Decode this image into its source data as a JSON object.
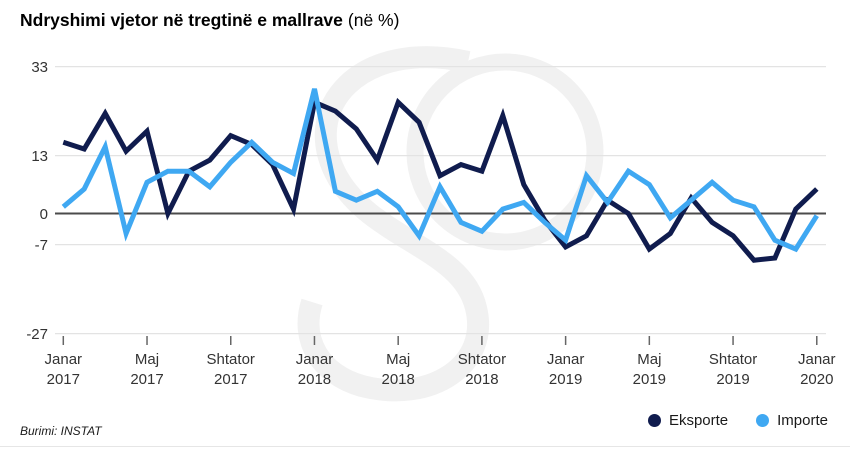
{
  "title": {
    "main": "Ndryshimi vjetor në tregtinë e mallrave",
    "suffix": "(në %)"
  },
  "source_label": "Burimi: INSTAT",
  "legend": [
    {
      "label": "Eksporte",
      "color": "#101c4e"
    },
    {
      "label": "Importe",
      "color": "#3fa8f2"
    }
  ],
  "colors": {
    "eksporte_line": "#101c4e",
    "importe_line": "#3fa8f2",
    "zero_axis": "#4b4b4b",
    "gridline": "#e3e3e3",
    "tick_mark": "#666666",
    "axis_text": "#333333",
    "watermark": "#f1f1f1"
  },
  "chart_data": {
    "type": "line",
    "title": "Ndryshimi vjetor në tregtinë e mallrave (në %)",
    "unit": "%",
    "grid": "horizontal",
    "legend_position": "bottom-right",
    "ylim": [
      -27,
      33
    ],
    "y_ticks": [
      33,
      13,
      0,
      -7,
      -27
    ],
    "x": [
      "2017-01",
      "2017-02",
      "2017-03",
      "2017-04",
      "2017-05",
      "2017-06",
      "2017-07",
      "2017-08",
      "2017-09",
      "2017-10",
      "2017-11",
      "2017-12",
      "2018-01",
      "2018-02",
      "2018-03",
      "2018-04",
      "2018-05",
      "2018-06",
      "2018-07",
      "2018-08",
      "2018-09",
      "2018-10",
      "2018-11",
      "2018-12",
      "2019-01",
      "2019-02",
      "2019-03",
      "2019-04",
      "2019-05",
      "2019-06",
      "2019-07",
      "2019-08",
      "2019-09",
      "2019-10",
      "2019-11",
      "2019-12",
      "2020-01"
    ],
    "x_tick_labels": [
      {
        "index": 0,
        "line1": "Janar",
        "line2": "2017"
      },
      {
        "index": 4,
        "line1": "Maj",
        "line2": "2017"
      },
      {
        "index": 8,
        "line1": "Shtator",
        "line2": "2017"
      },
      {
        "index": 12,
        "line1": "Janar",
        "line2": "2018"
      },
      {
        "index": 16,
        "line1": "Maj",
        "line2": "2018"
      },
      {
        "index": 20,
        "line1": "Shtator",
        "line2": "2018"
      },
      {
        "index": 24,
        "line1": "Janar",
        "line2": "2019"
      },
      {
        "index": 28,
        "line1": "Maj",
        "line2": "2019"
      },
      {
        "index": 32,
        "line1": "Shtator",
        "line2": "2019"
      },
      {
        "index": 36,
        "line1": "Janar",
        "line2": "2020"
      }
    ],
    "series": [
      {
        "name": "Eksporte",
        "color": "#101c4e",
        "values": [
          16,
          14.5,
          22.5,
          14,
          18.5,
          0,
          9.5,
          12,
          17.5,
          15.5,
          11,
          1,
          25,
          23,
          19,
          12,
          25,
          20.5,
          8.5,
          11,
          9.5,
          22,
          6.5,
          -1.5,
          -7.5,
          -5,
          3,
          0,
          -8,
          -4.5,
          3.5,
          -2,
          -5,
          -10.5,
          -10,
          1,
          5.5
        ]
      },
      {
        "name": "Importe",
        "color": "#3fa8f2",
        "values": [
          1.5,
          5.5,
          15,
          -4.5,
          7,
          9.5,
          9.5,
          6,
          11.5,
          16,
          11.5,
          9,
          28,
          5,
          3,
          5,
          1.5,
          -5,
          6,
          -2,
          -4,
          1,
          2.5,
          -2,
          -6,
          8.5,
          2.5,
          9.5,
          6.5,
          -1,
          3,
          7,
          3,
          1.5,
          -6,
          -8,
          -0.5
        ]
      }
    ]
  }
}
